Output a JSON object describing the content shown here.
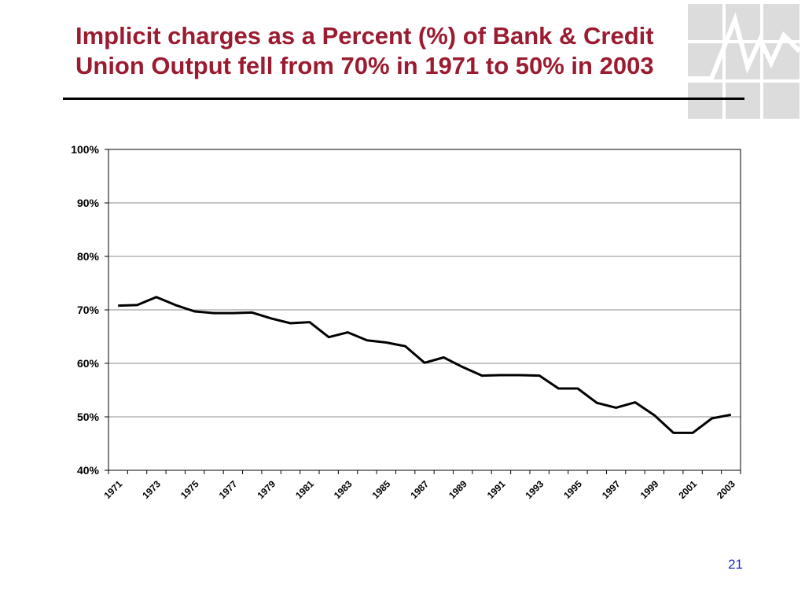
{
  "slide": {
    "title_line1": "Implicit charges as a Percent (%) of Bank & Credit",
    "title_line2": "Union Output fell from 70% in 1971 to 50% in 2003",
    "page_number": "21",
    "title_color": "#9b1b30",
    "page_number_color": "#1f2bbf",
    "decoration_icon": "grid-logo-icon"
  },
  "chart_data": {
    "type": "line",
    "title": "",
    "xlabel": "",
    "ylabel": "",
    "x": [
      1971,
      1972,
      1973,
      1974,
      1975,
      1976,
      1977,
      1978,
      1979,
      1980,
      1981,
      1982,
      1983,
      1984,
      1985,
      1986,
      1987,
      1988,
      1989,
      1990,
      1991,
      1992,
      1993,
      1994,
      1995,
      1996,
      1997,
      1998,
      1999,
      2000,
      2001,
      2002,
      2003
    ],
    "x_tick_labels": [
      "1971",
      "1973",
      "1975",
      "1977",
      "1979",
      "1981",
      "1983",
      "1985",
      "1987",
      "1989",
      "1991",
      "1993",
      "1995",
      "1997",
      "1999",
      "2001",
      "2003"
    ],
    "series": [
      {
        "values": [
          70.8,
          70.9,
          72.4,
          70.9,
          69.7,
          69.4,
          69.4,
          69.5,
          68.4,
          67.5,
          67.7,
          64.9,
          65.8,
          64.3,
          63.9,
          63.2,
          60.1,
          61.1,
          59.3,
          57.7,
          57.8,
          57.8,
          57.7,
          55.3,
          55.3,
          52.6,
          51.7,
          52.7,
          50.3,
          47.0,
          47.0,
          49.7,
          50.4
        ],
        "color": "#000000"
      }
    ],
    "ylim": [
      40,
      100
    ],
    "y_ticks": [
      40,
      50,
      60,
      70,
      80,
      90,
      100
    ],
    "y_tick_labels": [
      "40%",
      "50%",
      "60%",
      "70%",
      "80%",
      "90%",
      "100%"
    ],
    "grid": true,
    "legend": "none"
  }
}
